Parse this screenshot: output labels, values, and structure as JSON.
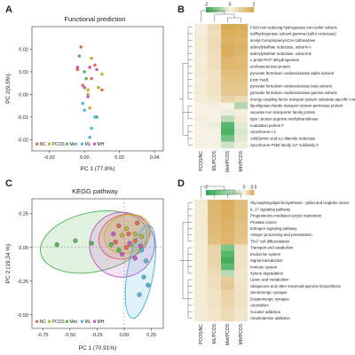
{
  "panels": {
    "a": {
      "letter": "A",
      "title": "Functional prediction"
    },
    "b": {
      "letter": "B"
    },
    "c": {
      "letter": "C",
      "title": "KEGG pathway"
    },
    "d": {
      "letter": "D"
    }
  },
  "colors": {
    "NC": "#e46c55",
    "PCOS": "#c3b42f",
    "Met": "#56b95b",
    "ML": "#4fb7d8",
    "MH": "#c35ec7",
    "heat_low": "#2fa84f",
    "heat_mid": "#f6f1e3",
    "heat_high": "#d8a74f"
  },
  "chart_data": [
    {
      "panel": "A",
      "type": "scatter",
      "title": "Functional prediction",
      "xlabel": "PC 1 (77.8%)",
      "ylabel": "PC 2(9.5%)",
      "xlim": [
        -0.03,
        0.045
      ],
      "ylim": [
        -0.025,
        0.03
      ],
      "xticks": [
        -0.02,
        0.0,
        0.02,
        0.04
      ],
      "xtick_labels": [
        "-0.02",
        "0.00",
        "0.02",
        "0.04"
      ],
      "yticks": [
        -0.02,
        -0.01,
        0.0,
        0.01,
        0.02
      ],
      "ytick_labels": [
        "-0.02",
        "-0.01",
        "0.00",
        "0.01",
        "0.02"
      ],
      "legend": {
        "placement": "bottom-left",
        "entries": [
          "NC",
          "PCOS",
          "Met",
          "ML",
          "MH"
        ]
      },
      "series": [
        {
          "name": "NC",
          "points": [
            [
              -0.002,
              0.021
            ],
            [
              0.006,
              0.013
            ],
            [
              -0.001,
              0.004
            ],
            [
              0.01,
              0.002
            ],
            [
              -0.004,
              0.011
            ],
            [
              0.004,
              0.007
            ]
          ]
        },
        {
          "name": "PCOS",
          "points": [
            [
              0.004,
              0.016
            ],
            [
              0.008,
              0.003
            ],
            [
              0.002,
              0.002
            ],
            [
              0.01,
              0.009
            ],
            [
              0.003,
              -0.006
            ],
            [
              0.002,
              0.0
            ]
          ]
        },
        {
          "name": "Met",
          "points": [
            [
              -0.003,
              0.017
            ],
            [
              0.0,
              0.01
            ],
            [
              0.007,
              -0.01
            ],
            [
              0.001,
              0.007
            ]
          ]
        },
        {
          "name": "ML",
          "points": [
            [
              -0.001,
              -0.004
            ],
            [
              0.004,
              -0.015
            ],
            [
              0.003,
              -0.019
            ],
            [
              0.006,
              -0.01
            ],
            [
              0.0,
              -0.007
            ]
          ]
        },
        {
          "name": "MH",
          "points": [
            [
              -0.004,
              0.012
            ],
            [
              0.0,
              0.003
            ],
            [
              0.003,
              0.012
            ],
            [
              0.002,
              -0.001
            ],
            [
              0.007,
              0.011
            ]
          ]
        }
      ]
    },
    {
      "panel": "B",
      "type": "heatmap",
      "colorbar": {
        "ticks": [
          "-2",
          "0",
          "2"
        ],
        "range": [
          -2,
          2
        ]
      },
      "columns": [
        "PCOS/NC",
        "ML/PCOS",
        "Met/PCOS",
        "MH/PCOS"
      ],
      "rows": [
        "F420-non-reducing hydrogenase iron-sulfur subunit",
        "sulfhydrogenase subunit gamma (sulfur reductase)",
        "acetyl-CoA/propionyl-CoA carboxylase",
        "adenylylsulfate reductase, subunit A",
        "adenylylsulfate reductase, subunit B",
        "L-prolyl-PCP dehydrogenase",
        "uncharacterized protein",
        "pyruvate ferredoxin oxidoreductase alpha subunit",
        "toxin YoeB",
        "pyruvate ferredoxin oxidoreductase beta subunit",
        "pyruvate ferredoxin oxidoreductase gamma subunit",
        "energy-coupling factor transport system substrate-specific component",
        "lipooligosaccharide transport system permease protein",
        "vacuolar iron transporter family protein",
        "type I protein arginine methyltransferase",
        "nodulation protein F",
        "cytochrome c-L",
        "cob(I)yrinic acid a,c-diamide reductase",
        "cytochrome P450 family 117 subfamily A"
      ],
      "values": [
        [
          0.1,
          0.6,
          1.9,
          1.8
        ],
        [
          0.1,
          0.5,
          1.8,
          1.7
        ],
        [
          0.2,
          0.6,
          1.7,
          1.6
        ],
        [
          0.2,
          0.6,
          1.8,
          1.7
        ],
        [
          0.2,
          0.5,
          1.8,
          1.6
        ],
        [
          0.1,
          0.5,
          1.6,
          1.5
        ],
        [
          0.2,
          0.5,
          1.6,
          1.5
        ],
        [
          0.2,
          0.4,
          1.4,
          1.4
        ],
        [
          0.1,
          0.4,
          1.3,
          1.3
        ],
        [
          0.2,
          0.4,
          1.2,
          1.2
        ],
        [
          0.2,
          0.4,
          1.1,
          1.2
        ],
        [
          0.1,
          0.3,
          0.8,
          0.6
        ],
        [
          0.0,
          0.1,
          0.0,
          -0.7
        ],
        [
          0.0,
          0.0,
          -0.1,
          0.1
        ],
        [
          0.1,
          0.0,
          -0.6,
          0.2
        ],
        [
          0.0,
          -0.1,
          -1.6,
          -0.2
        ],
        [
          0.0,
          0.0,
          -1.7,
          -0.3
        ],
        [
          0.0,
          0.0,
          -1.3,
          -0.2
        ],
        [
          0.0,
          0.0,
          -0.4,
          -0.1
        ]
      ]
    },
    {
      "panel": "C",
      "type": "scatter",
      "title": "KEGG pathway",
      "xlabel": "PC 1 (70.91%)",
      "ylabel": "PC 2 (19.34 %)",
      "xlim": [
        -0.85,
        0.36
      ],
      "ylim": [
        -0.6,
        0.36
      ],
      "xticks": [
        -0.75,
        -0.5,
        -0.25,
        0.0,
        0.25
      ],
      "xtick_labels": [
        "-0.75",
        "-0.50",
        "-0.25",
        "0.00",
        "0.25"
      ],
      "yticks": [
        -0.5,
        -0.25,
        0.0,
        0.25
      ],
      "ytick_labels": [
        "-0.50",
        "-0.25",
        "0.00",
        "0.25"
      ],
      "legend": {
        "placement": "bottom-left",
        "entries": [
          "NC",
          "PCOS",
          "Met",
          "ML",
          "MH"
        ]
      },
      "ellipses": [
        {
          "name": "Met",
          "cx": -0.28,
          "cy": 0.04,
          "rx": 0.5,
          "ry": 0.22,
          "angle": -12
        },
        {
          "name": "NC",
          "cx": 0.0,
          "cy": 0.08,
          "rx": 0.24,
          "ry": 0.16,
          "angle": -25
        },
        {
          "name": "MH",
          "cx": -0.02,
          "cy": 0.02,
          "rx": 0.3,
          "ry": 0.24,
          "angle": -30
        },
        {
          "name": "PCOS",
          "cx": 0.03,
          "cy": 0.1,
          "rx": 0.22,
          "ry": 0.14,
          "angle": -20
        },
        {
          "name": "ML",
          "cx": 0.15,
          "cy": -0.18,
          "rx": 0.12,
          "ry": 0.35,
          "angle": 10
        }
      ],
      "series": [
        {
          "name": "NC",
          "points": [
            [
              -0.05,
              0.16
            ],
            [
              0.04,
              0.1
            ],
            [
              0.1,
              0.05
            ],
            [
              -0.08,
              0.04
            ],
            [
              0.02,
              0.0
            ],
            [
              0.12,
              0.18
            ]
          ]
        },
        {
          "name": "PCOS",
          "points": [
            [
              0.02,
              0.14
            ],
            [
              0.1,
              0.1
            ],
            [
              0.16,
              0.08
            ],
            [
              0.06,
              0.02
            ],
            [
              -0.02,
              0.09
            ]
          ]
        },
        {
          "name": "Met",
          "points": [
            [
              -0.62,
              0.02
            ],
            [
              -0.45,
              0.05
            ],
            [
              -0.3,
              0.03
            ],
            [
              -0.12,
              0.02
            ],
            [
              -0.05,
              -0.02
            ]
          ]
        },
        {
          "name": "ML",
          "points": [
            [
              0.16,
              -0.02
            ],
            [
              0.2,
              -0.1
            ],
            [
              0.18,
              -0.22
            ],
            [
              0.14,
              -0.35
            ],
            [
              0.22,
              -0.28
            ]
          ]
        },
        {
          "name": "MH",
          "points": [
            [
              -0.1,
              0.1
            ],
            [
              0.05,
              0.03
            ],
            [
              0.1,
              -0.08
            ],
            [
              -0.02,
              -0.05
            ],
            [
              0.15,
              0.01
            ]
          ]
        }
      ]
    },
    {
      "panel": "D",
      "type": "heatmap",
      "colorbar": {
        "ticks": [
          "-2",
          "0",
          "0.5"
        ],
        "range": [
          -2,
          0.5
        ]
      },
      "columns": [
        "PCOS/NC",
        "ML/PCOS",
        "Met/PCOS",
        "MH/PCOS"
      ],
      "rows": [
        "Glycosphingolipid biosynthesis - globo and isoglobo series",
        "IL-17 signaling pathway",
        "Progesterone-mediated oocyte maturation",
        "Prostate cancer",
        "Estrogen signaling pathway",
        "Antigen processing and presentation",
        "Th17 cell differentiation",
        "Transport and catabolism",
        "Endocrine system",
        "Signal transduction",
        "Immune system",
        "Xylene degradation",
        "Lipoic acid metabolism",
        "Ubiquinone and other terpenoid-quinone biosynthesis",
        "Serotonergic synapse",
        "Dopaminergic synapse",
        "Alcoholism",
        "Cocaine addiction",
        "Amphetamine addiction"
      ],
      "values": [
        [
          0.05,
          0.4,
          0.45,
          0.35
        ],
        [
          0.05,
          0.4,
          0.45,
          0.35
        ],
        [
          0.05,
          0.38,
          0.45,
          0.35
        ],
        [
          0.05,
          0.38,
          0.42,
          0.33
        ],
        [
          0.05,
          0.36,
          0.42,
          0.32
        ],
        [
          0.05,
          0.36,
          0.4,
          0.32
        ],
        [
          0.05,
          0.34,
          0.4,
          0.3
        ],
        [
          0.05,
          0.2,
          -1.2,
          0.1
        ],
        [
          0.05,
          0.2,
          -1.6,
          0.1
        ],
        [
          0.05,
          0.2,
          -1.8,
          0.1
        ],
        [
          0.05,
          0.18,
          -1.5,
          0.1
        ],
        [
          0.05,
          0.15,
          -0.6,
          0.08
        ],
        [
          0.05,
          0.12,
          0.25,
          0.08
        ],
        [
          0.05,
          0.12,
          0.28,
          0.1
        ],
        [
          0.05,
          0.1,
          0.2,
          0.1
        ],
        [
          0.05,
          0.1,
          0.2,
          0.1
        ],
        [
          0.05,
          0.1,
          0.18,
          0.1
        ],
        [
          0.05,
          0.08,
          0.15,
          0.08
        ],
        [
          0.05,
          0.08,
          0.15,
          0.08
        ]
      ]
    }
  ]
}
